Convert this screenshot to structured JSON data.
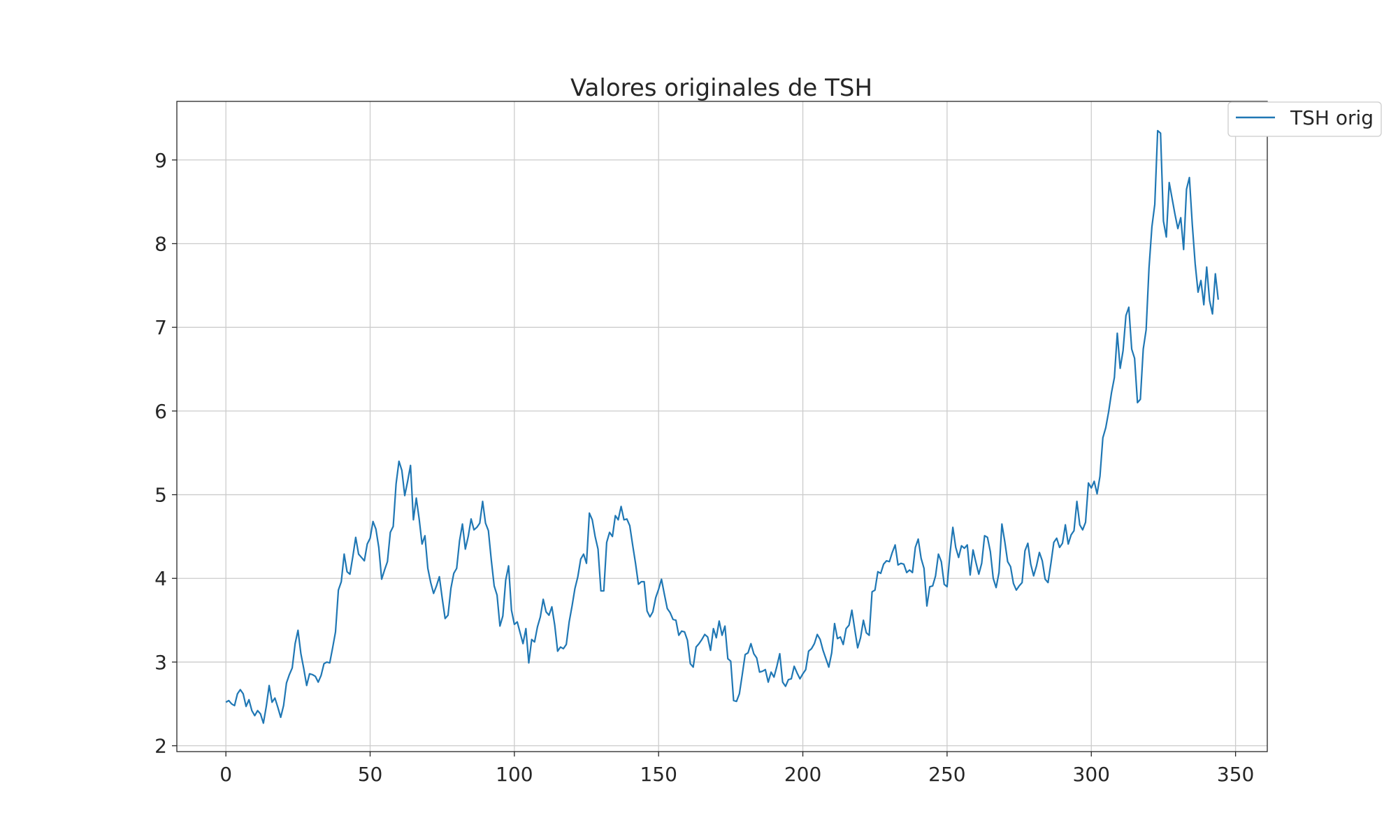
{
  "chart_data": {
    "type": "line",
    "title": "Valores originales de TSH",
    "xlabel": "",
    "ylabel": "",
    "xlim": [
      -17,
      361
    ],
    "ylim": [
      1.93,
      9.7
    ],
    "xticks": [
      0,
      50,
      100,
      150,
      200,
      250,
      300,
      350
    ],
    "yticks": [
      2,
      3,
      4,
      5,
      6,
      7,
      8,
      9
    ],
    "grid": true,
    "legend": {
      "placement": "upper-right-outside",
      "entries": [
        "TSH orig"
      ]
    },
    "colors": {
      "series": "#1f77b4",
      "grid": "#cccccc",
      "axes": "#262626"
    },
    "series": [
      {
        "name": "TSH orig",
        "x_start": 0,
        "x_step": 1,
        "values": [
          2.52,
          2.54,
          2.5,
          2.48,
          2.62,
          2.67,
          2.62,
          2.47,
          2.55,
          2.42,
          2.36,
          2.42,
          2.38,
          2.27,
          2.47,
          2.72,
          2.52,
          2.57,
          2.46,
          2.34,
          2.48,
          2.75,
          2.85,
          2.93,
          3.22,
          3.38,
          3.1,
          2.92,
          2.72,
          2.86,
          2.85,
          2.83,
          2.76,
          2.84,
          2.98,
          3.0,
          2.99,
          3.17,
          3.36,
          3.86,
          3.96,
          4.29,
          4.08,
          4.05,
          4.26,
          4.49,
          4.29,
          4.25,
          4.21,
          4.41,
          4.48,
          4.68,
          4.59,
          4.37,
          3.99,
          4.1,
          4.2,
          4.55,
          4.62,
          5.13,
          5.4,
          5.29,
          4.99,
          5.16,
          5.35,
          4.7,
          4.96,
          4.71,
          4.41,
          4.51,
          4.12,
          3.95,
          3.82,
          3.91,
          4.02,
          3.76,
          3.52,
          3.56,
          3.88,
          4.06,
          4.12,
          4.45,
          4.65,
          4.35,
          4.5,
          4.71,
          4.58,
          4.61,
          4.66,
          4.92,
          4.66,
          4.57,
          4.22,
          3.91,
          3.8,
          3.43,
          3.55,
          3.98,
          4.15,
          3.62,
          3.45,
          3.48,
          3.35,
          3.22,
          3.4,
          2.99,
          3.27,
          3.24,
          3.42,
          3.54,
          3.75,
          3.6,
          3.56,
          3.66,
          3.44,
          3.13,
          3.18,
          3.16,
          3.21,
          3.48,
          3.67,
          3.88,
          4.02,
          4.23,
          4.29,
          4.18,
          4.78,
          4.7,
          4.5,
          4.35,
          3.85,
          3.85,
          4.43,
          4.55,
          4.5,
          4.75,
          4.7,
          4.86,
          4.7,
          4.71,
          4.63,
          4.4,
          4.18,
          3.93,
          3.96,
          3.96,
          3.61,
          3.54,
          3.6,
          3.77,
          3.87,
          3.99,
          3.81,
          3.64,
          3.59,
          3.51,
          3.5,
          3.32,
          3.37,
          3.36,
          3.26,
          2.98,
          2.94,
          3.18,
          3.22,
          3.27,
          3.33,
          3.3,
          3.14,
          3.4,
          3.29,
          3.49,
          3.32,
          3.43,
          3.04,
          3.01,
          2.54,
          2.53,
          2.62,
          2.85,
          3.09,
          3.11,
          3.22,
          3.1,
          3.05,
          2.88,
          2.89,
          2.91,
          2.76,
          2.88,
          2.82,
          2.95,
          3.1,
          2.76,
          2.71,
          2.79,
          2.8,
          2.95,
          2.87,
          2.8,
          2.86,
          2.91,
          3.13,
          3.16,
          3.22,
          3.33,
          3.27,
          3.14,
          3.04,
          2.94,
          3.11,
          3.46,
          3.28,
          3.3,
          3.21,
          3.4,
          3.44,
          3.62,
          3.39,
          3.17,
          3.29,
          3.5,
          3.35,
          3.32,
          3.84,
          3.86,
          4.08,
          4.06,
          4.17,
          4.21,
          4.2,
          4.31,
          4.4,
          4.16,
          4.18,
          4.17,
          4.07,
          4.1,
          4.07,
          4.37,
          4.47,
          4.24,
          4.12,
          3.67,
          3.9,
          3.91,
          4.03,
          4.29,
          4.2,
          3.93,
          3.9,
          4.29,
          4.61,
          4.37,
          4.25,
          4.39,
          4.36,
          4.4,
          4.04,
          4.34,
          4.19,
          4.05,
          4.18,
          4.51,
          4.49,
          4.32,
          4.0,
          3.89,
          4.07,
          4.65,
          4.44,
          4.2,
          4.14,
          3.94,
          3.86,
          3.91,
          3.95,
          4.33,
          4.42,
          4.17,
          4.03,
          4.15,
          4.31,
          4.21,
          3.99,
          3.95,
          4.18,
          4.43,
          4.48,
          4.37,
          4.42,
          4.64,
          4.41,
          4.52,
          4.57,
          4.92,
          4.64,
          4.58,
          4.67,
          5.14,
          5.08,
          5.16,
          5.01,
          5.22,
          5.68,
          5.8,
          5.99,
          6.22,
          6.4,
          6.93,
          6.51,
          6.72,
          7.14,
          7.24,
          6.74,
          6.63,
          6.1,
          6.14,
          6.74,
          6.97,
          7.71,
          8.2,
          8.47,
          9.35,
          9.32,
          8.27,
          8.08,
          8.73,
          8.54,
          8.35,
          8.18,
          8.31,
          7.93,
          8.65,
          8.79,
          8.23,
          7.76,
          7.42,
          7.56,
          7.27,
          7.72,
          7.32,
          7.16,
          7.64,
          7.33
        ]
      }
    ]
  }
}
